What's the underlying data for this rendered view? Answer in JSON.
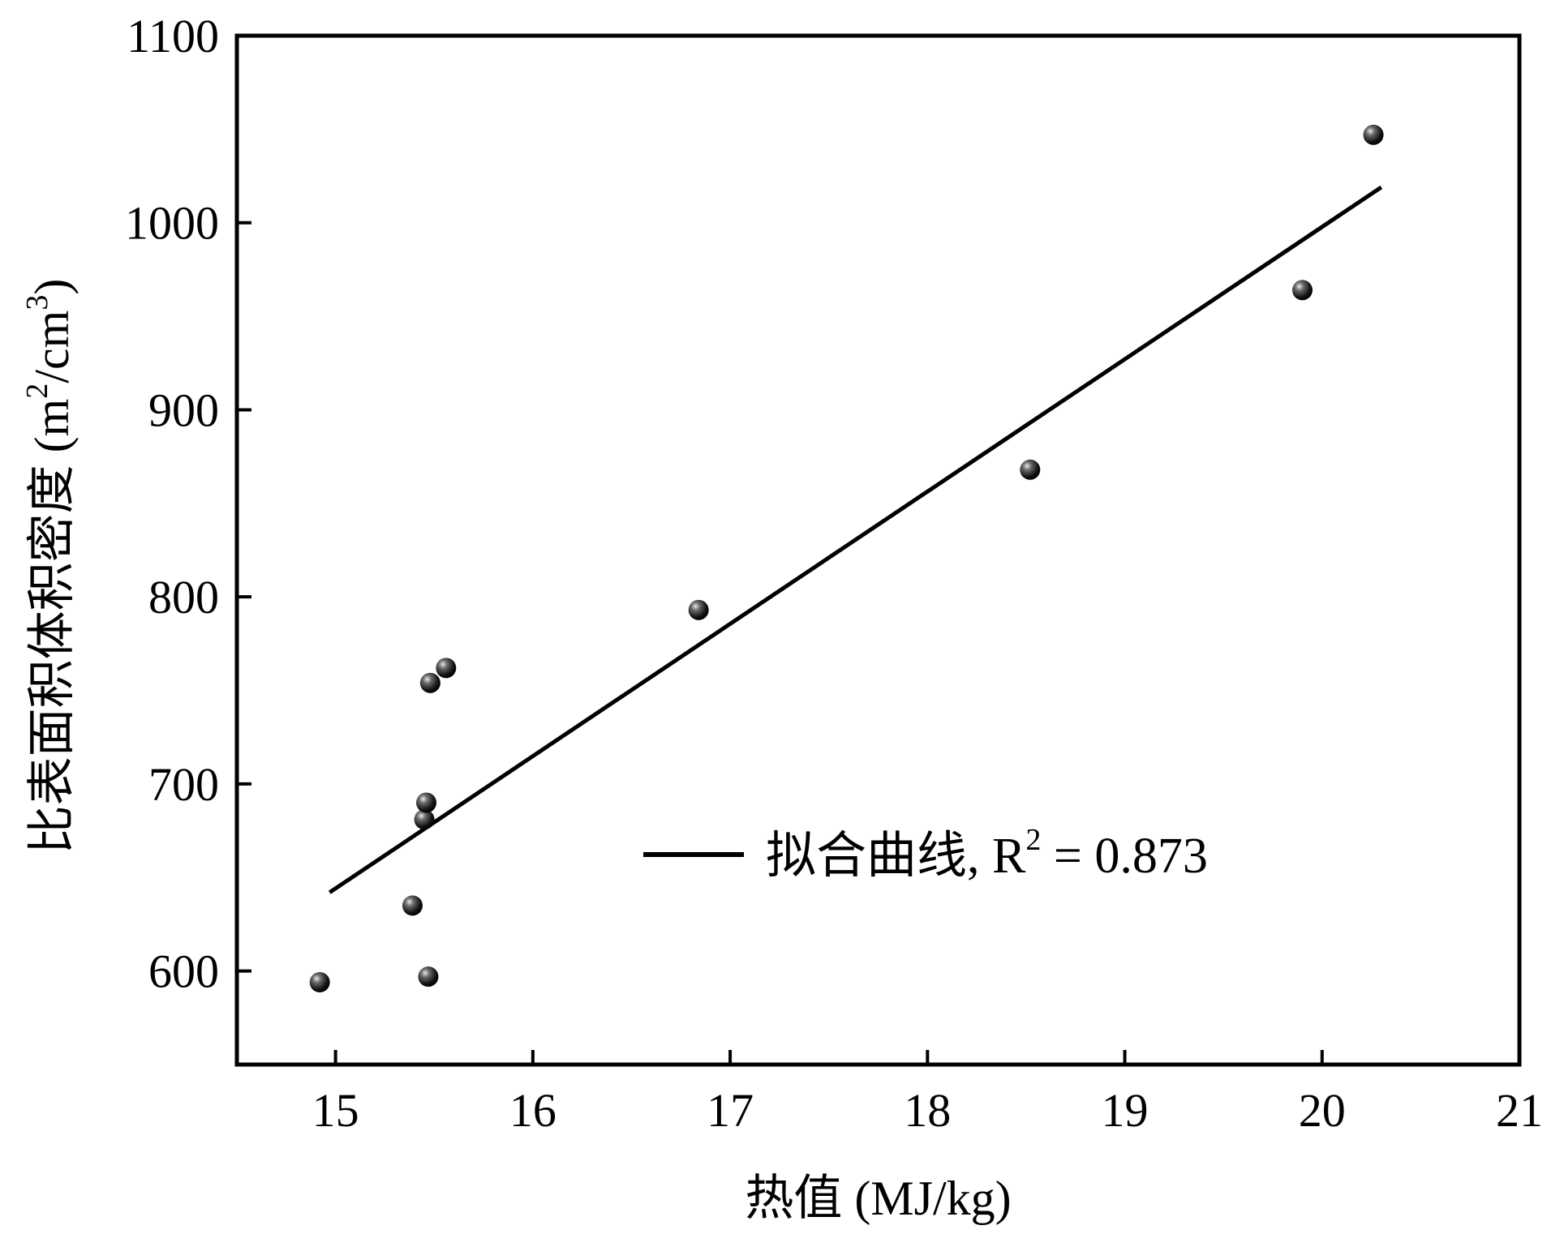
{
  "chart_data": {
    "type": "scatter",
    "xlabel": "热值 (MJ/kg)",
    "ylabel_main": "比表面积体积密度 (m",
    "ylabel_sup1": "2",
    "ylabel_mid": "/cm",
    "ylabel_sup2": "3",
    "ylabel_end": ")",
    "xlim": [
      14.5,
      21
    ],
    "ylim": [
      550,
      1100
    ],
    "xticks": [
      15,
      16,
      17,
      18,
      19,
      20,
      21
    ],
    "yticks": [
      600,
      700,
      800,
      900,
      1000,
      1100
    ],
    "xtick_labels": [
      "15",
      "16",
      "17",
      "18",
      "19",
      "20",
      "21"
    ],
    "ytick_labels": [
      "600",
      "700",
      "800",
      "900",
      "1000",
      "1100"
    ],
    "points": [
      {
        "x": 14.92,
        "y": 594
      },
      {
        "x": 15.39,
        "y": 635
      },
      {
        "x": 15.45,
        "y": 681
      },
      {
        "x": 15.46,
        "y": 690
      },
      {
        "x": 15.47,
        "y": 597
      },
      {
        "x": 15.48,
        "y": 754
      },
      {
        "x": 15.56,
        "y": 762
      },
      {
        "x": 16.84,
        "y": 793
      },
      {
        "x": 18.52,
        "y": 868
      },
      {
        "x": 19.9,
        "y": 964
      },
      {
        "x": 20.26,
        "y": 1047
      }
    ],
    "fit_line": {
      "x": [
        14.97,
        20.3
      ],
      "y": [
        642,
        1019
      ]
    },
    "legend": {
      "label": "拟合曲线, R",
      "sup": "2",
      "value_text": " = 0.873",
      "placement": "bottom-right"
    },
    "grid": false
  }
}
